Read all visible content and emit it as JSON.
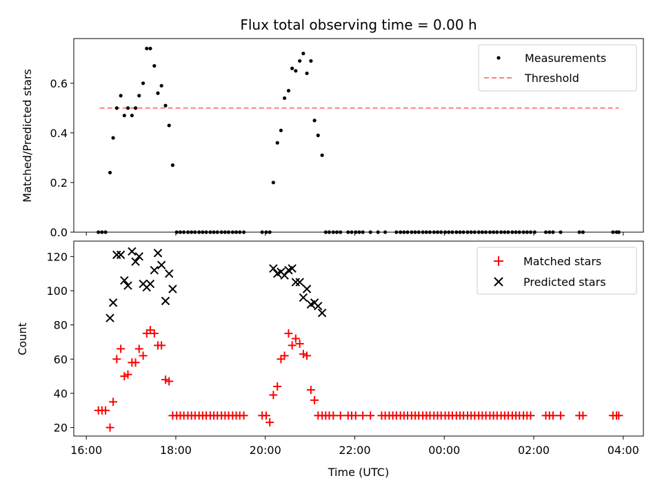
{
  "chart_data": {
    "title": "Flux total observing time = 0.00 h",
    "xlabel": "Time (UTC)",
    "x_unit": "hours since 16:00 UTC (axis labels show clock time)",
    "xlim": [
      -0.28,
      12.45
    ],
    "xticks": [
      {
        "x": 0,
        "label": "16:00"
      },
      {
        "x": 2,
        "label": "18:00"
      },
      {
        "x": 4,
        "label": "20:00"
      },
      {
        "x": 6,
        "label": "22:00"
      },
      {
        "x": 8,
        "label": "00:00"
      },
      {
        "x": 10,
        "label": "02:00"
      },
      {
        "x": 12,
        "label": "04:00"
      }
    ],
    "top": {
      "type": "scatter",
      "ylabel": "Matched/Predicted stars",
      "ylim": [
        0.0,
        0.78
      ],
      "yticks": [
        0.0,
        0.2,
        0.4,
        0.6
      ],
      "legend_position": "top-right",
      "threshold": {
        "name": "Threshold",
        "y": 0.5,
        "x_range": [
          0.3,
          11.9
        ],
        "color": "#ff7f7f"
      },
      "measurements": {
        "name": "Measurements",
        "color": "#000000",
        "points": [
          [
            0.27,
            0
          ],
          [
            0.35,
            0
          ],
          [
            0.43,
            0
          ],
          [
            0.53,
            0.24
          ],
          [
            0.6,
            0.38
          ],
          [
            0.68,
            0.5
          ],
          [
            0.77,
            0.55
          ],
          [
            0.85,
            0.47
          ],
          [
            0.93,
            0.5
          ],
          [
            1.02,
            0.47
          ],
          [
            1.1,
            0.5
          ],
          [
            1.18,
            0.55
          ],
          [
            1.27,
            0.6
          ],
          [
            1.35,
            0.74
          ],
          [
            1.43,
            0.74
          ],
          [
            1.52,
            0.67
          ],
          [
            1.6,
            0.56
          ],
          [
            1.68,
            0.59
          ],
          [
            1.77,
            0.51
          ],
          [
            1.85,
            0.43
          ],
          [
            1.93,
            0.27
          ],
          [
            2.02,
            0
          ],
          [
            2.1,
            0
          ],
          [
            2.18,
            0
          ],
          [
            2.27,
            0
          ],
          [
            2.35,
            0
          ],
          [
            2.43,
            0
          ],
          [
            2.52,
            0
          ],
          [
            2.6,
            0
          ],
          [
            2.68,
            0
          ],
          [
            2.77,
            0
          ],
          [
            2.85,
            0
          ],
          [
            2.93,
            0
          ],
          [
            3.02,
            0
          ],
          [
            3.1,
            0
          ],
          [
            3.18,
            0
          ],
          [
            3.27,
            0
          ],
          [
            3.35,
            0
          ],
          [
            3.43,
            0
          ],
          [
            3.52,
            0
          ],
          [
            3.93,
            0
          ],
          [
            4.02,
            0
          ],
          [
            4.1,
            0
          ],
          [
            4.18,
            0.2
          ],
          [
            4.27,
            0.36
          ],
          [
            4.35,
            0.41
          ],
          [
            4.43,
            0.54
          ],
          [
            4.52,
            0.57
          ],
          [
            4.6,
            0.66
          ],
          [
            4.68,
            0.65
          ],
          [
            4.77,
            0.69
          ],
          [
            4.85,
            0.72
          ],
          [
            4.93,
            0.64
          ],
          [
            5.02,
            0.69
          ],
          [
            5.1,
            0.45
          ],
          [
            5.18,
            0.39
          ],
          [
            5.27,
            0.31
          ],
          [
            5.35,
            0
          ],
          [
            5.43,
            0
          ],
          [
            5.52,
            0
          ],
          [
            5.6,
            0
          ],
          [
            5.68,
            0
          ],
          [
            5.85,
            0
          ],
          [
            5.93,
            0
          ],
          [
            6.02,
            0
          ],
          [
            6.1,
            0
          ],
          [
            6.18,
            0
          ],
          [
            6.35,
            0
          ],
          [
            6.52,
            0
          ],
          [
            6.68,
            0
          ],
          [
            6.93,
            0
          ],
          [
            7.02,
            0
          ],
          [
            7.1,
            0
          ],
          [
            7.18,
            0
          ],
          [
            7.27,
            0
          ],
          [
            7.35,
            0
          ],
          [
            7.43,
            0
          ],
          [
            7.52,
            0
          ],
          [
            7.6,
            0
          ],
          [
            7.68,
            0
          ],
          [
            7.77,
            0
          ],
          [
            7.85,
            0
          ],
          [
            7.93,
            0
          ],
          [
            8.02,
            0
          ],
          [
            8.1,
            0
          ],
          [
            8.18,
            0
          ],
          [
            8.27,
            0
          ],
          [
            8.35,
            0
          ],
          [
            8.43,
            0
          ],
          [
            8.52,
            0
          ],
          [
            8.6,
            0
          ],
          [
            8.68,
            0
          ],
          [
            8.77,
            0
          ],
          [
            8.85,
            0
          ],
          [
            8.93,
            0
          ],
          [
            9.02,
            0
          ],
          [
            9.1,
            0
          ],
          [
            9.18,
            0
          ],
          [
            9.27,
            0
          ],
          [
            9.35,
            0
          ],
          [
            9.43,
            0
          ],
          [
            9.52,
            0
          ],
          [
            9.6,
            0
          ],
          [
            9.68,
            0
          ],
          [
            9.77,
            0
          ],
          [
            9.85,
            0
          ],
          [
            9.93,
            0
          ],
          [
            10.02,
            0
          ],
          [
            10.27,
            0
          ],
          [
            10.35,
            0
          ],
          [
            10.43,
            0
          ],
          [
            10.6,
            0
          ],
          [
            11.02,
            0
          ],
          [
            11.1,
            0
          ],
          [
            11.77,
            0
          ],
          [
            11.85,
            0
          ],
          [
            11.9,
            0
          ]
        ]
      }
    },
    "bottom": {
      "type": "scatter",
      "ylabel": "Count",
      "ylim": [
        15,
        129
      ],
      "yticks": [
        20,
        40,
        60,
        80,
        100,
        120
      ],
      "legend_position": "top-right",
      "matched": {
        "name": "Matched stars",
        "color": "#ff0000",
        "points": [
          [
            0.27,
            30
          ],
          [
            0.35,
            30
          ],
          [
            0.43,
            30
          ],
          [
            0.53,
            20
          ],
          [
            0.6,
            35
          ],
          [
            0.68,
            60
          ],
          [
            0.77,
            66
          ],
          [
            0.85,
            50
          ],
          [
            0.93,
            51
          ],
          [
            1.02,
            58
          ],
          [
            1.1,
            58
          ],
          [
            1.18,
            66
          ],
          [
            1.27,
            62
          ],
          [
            1.35,
            75
          ],
          [
            1.43,
            77
          ],
          [
            1.52,
            75
          ],
          [
            1.6,
            68
          ],
          [
            1.68,
            68
          ],
          [
            1.77,
            48
          ],
          [
            1.85,
            47
          ],
          [
            1.93,
            27
          ],
          [
            2.02,
            27
          ],
          [
            2.1,
            27
          ],
          [
            2.18,
            27
          ],
          [
            2.27,
            27
          ],
          [
            2.35,
            27
          ],
          [
            2.43,
            27
          ],
          [
            2.52,
            27
          ],
          [
            2.6,
            27
          ],
          [
            2.68,
            27
          ],
          [
            2.77,
            27
          ],
          [
            2.85,
            27
          ],
          [
            2.93,
            27
          ],
          [
            3.02,
            27
          ],
          [
            3.1,
            27
          ],
          [
            3.18,
            27
          ],
          [
            3.27,
            27
          ],
          [
            3.35,
            27
          ],
          [
            3.43,
            27
          ],
          [
            3.52,
            27
          ],
          [
            3.93,
            27
          ],
          [
            4.02,
            27
          ],
          [
            4.1,
            23
          ],
          [
            4.18,
            39
          ],
          [
            4.27,
            44
          ],
          [
            4.35,
            60
          ],
          [
            4.43,
            62
          ],
          [
            4.52,
            75
          ],
          [
            4.6,
            68
          ],
          [
            4.68,
            72
          ],
          [
            4.77,
            69
          ],
          [
            4.85,
            63
          ],
          [
            4.93,
            62
          ],
          [
            5.02,
            42
          ],
          [
            5.1,
            36
          ],
          [
            5.18,
            27
          ],
          [
            5.27,
            27
          ],
          [
            5.35,
            27
          ],
          [
            5.43,
            27
          ],
          [
            5.52,
            27
          ],
          [
            5.68,
            27
          ],
          [
            5.85,
            27
          ],
          [
            5.93,
            27
          ],
          [
            6.02,
            27
          ],
          [
            6.18,
            27
          ],
          [
            6.35,
            27
          ],
          [
            6.6,
            27
          ],
          [
            6.68,
            27
          ],
          [
            6.77,
            27
          ],
          [
            6.85,
            27
          ],
          [
            6.93,
            27
          ],
          [
            7.02,
            27
          ],
          [
            7.1,
            27
          ],
          [
            7.18,
            27
          ],
          [
            7.27,
            27
          ],
          [
            7.35,
            27
          ],
          [
            7.43,
            27
          ],
          [
            7.52,
            27
          ],
          [
            7.6,
            27
          ],
          [
            7.68,
            27
          ],
          [
            7.77,
            27
          ],
          [
            7.85,
            27
          ],
          [
            7.93,
            27
          ],
          [
            8.02,
            27
          ],
          [
            8.1,
            27
          ],
          [
            8.18,
            27
          ],
          [
            8.27,
            27
          ],
          [
            8.35,
            27
          ],
          [
            8.43,
            27
          ],
          [
            8.52,
            27
          ],
          [
            8.6,
            27
          ],
          [
            8.68,
            27
          ],
          [
            8.77,
            27
          ],
          [
            8.85,
            27
          ],
          [
            8.93,
            27
          ],
          [
            9.02,
            27
          ],
          [
            9.1,
            27
          ],
          [
            9.18,
            27
          ],
          [
            9.27,
            27
          ],
          [
            9.35,
            27
          ],
          [
            9.43,
            27
          ],
          [
            9.52,
            27
          ],
          [
            9.6,
            27
          ],
          [
            9.68,
            27
          ],
          [
            9.77,
            27
          ],
          [
            9.85,
            27
          ],
          [
            9.93,
            27
          ],
          [
            10.27,
            27
          ],
          [
            10.35,
            27
          ],
          [
            10.43,
            27
          ],
          [
            10.6,
            27
          ],
          [
            11.02,
            27
          ],
          [
            11.1,
            27
          ],
          [
            11.77,
            27
          ],
          [
            11.85,
            27
          ],
          [
            11.9,
            27
          ]
        ]
      },
      "predicted": {
        "name": "Predicted stars",
        "color": "#000000",
        "points": [
          [
            0.53,
            84
          ],
          [
            0.6,
            93
          ],
          [
            0.68,
            121
          ],
          [
            0.77,
            121
          ],
          [
            0.85,
            106
          ],
          [
            0.93,
            103
          ],
          [
            1.02,
            123
          ],
          [
            1.1,
            117
          ],
          [
            1.18,
            120
          ],
          [
            1.27,
            104
          ],
          [
            1.35,
            102
          ],
          [
            1.43,
            104
          ],
          [
            1.52,
            112
          ],
          [
            1.6,
            122
          ],
          [
            1.68,
            115
          ],
          [
            1.77,
            94
          ],
          [
            1.85,
            110
          ],
          [
            1.93,
            101
          ],
          [
            4.18,
            113
          ],
          [
            4.27,
            110
          ],
          [
            4.35,
            111
          ],
          [
            4.43,
            109
          ],
          [
            4.52,
            112
          ],
          [
            4.6,
            113
          ],
          [
            4.68,
            105
          ],
          [
            4.77,
            105
          ],
          [
            4.85,
            96
          ],
          [
            4.93,
            101
          ],
          [
            5.02,
            92
          ],
          [
            5.1,
            93
          ],
          [
            5.18,
            91
          ],
          [
            5.27,
            87
          ]
        ]
      }
    }
  }
}
